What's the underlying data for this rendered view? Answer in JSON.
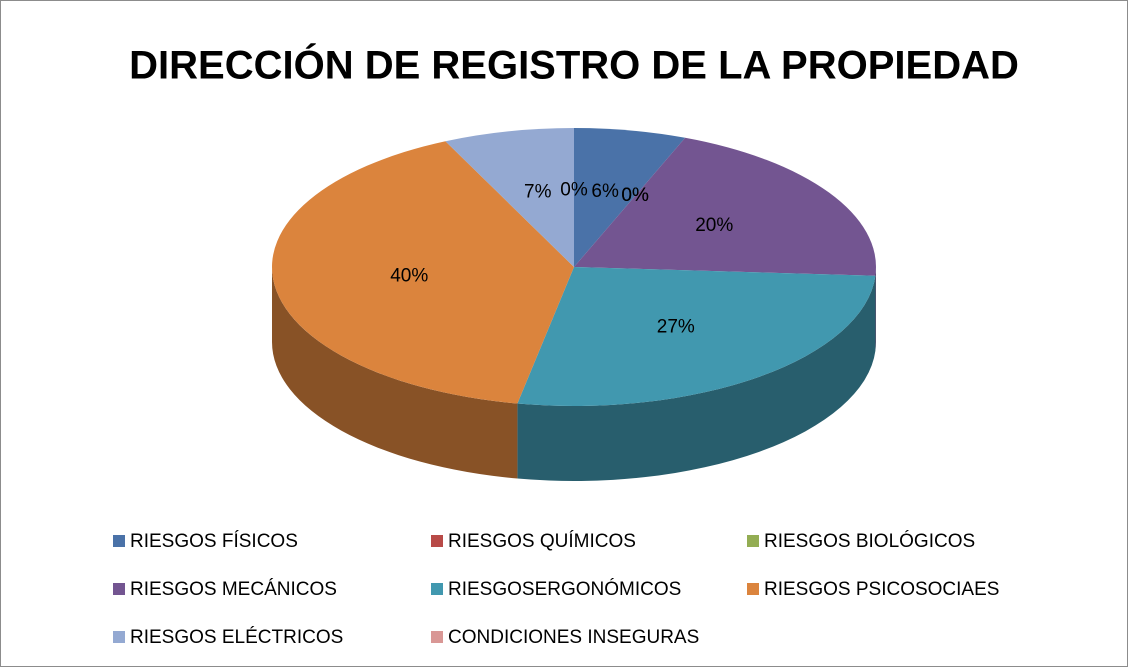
{
  "chart_data": {
    "type": "pie",
    "title": "DIRECCIÓN DE REGISTRO DE LA PROPIEDAD",
    "categories": [
      "RIESGOS FÍSICOS",
      "RIESGOS QUÍMICOS",
      "RIESGOS BIOLÓGICOS",
      "RIESGOS MECÁNICOS",
      "RIESGOSERGONÓMICOS",
      "RIESGOS PSICOSOCIAES",
      "RIESGOS ELÉCTRICOS",
      "CONDICIONES INSEGURAS"
    ],
    "values": [
      6,
      0,
      0,
      20,
      27,
      40,
      7,
      0
    ],
    "value_labels": [
      "6%",
      "0%",
      "0%",
      "20%",
      "27%",
      "40%",
      "7%",
      "0%"
    ],
    "colors": [
      "#4a72a8",
      "#b84a47",
      "#93ad53",
      "#735591",
      "#4198af",
      "#db843d",
      "#94a9d2",
      "#d99795"
    ],
    "legend": "bottom"
  }
}
